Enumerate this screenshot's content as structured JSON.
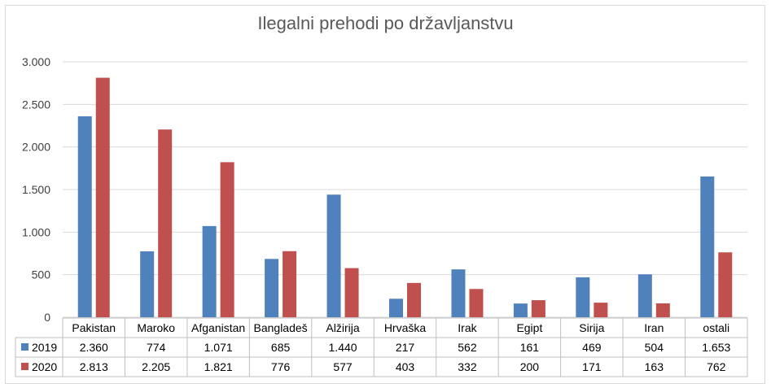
{
  "chart_data": {
    "type": "bar",
    "title": "Ilegalni prehodi po državljanstvu",
    "categories": [
      "Pakistan",
      "Maroko",
      "Afganistan",
      "Bangladeš",
      "Alžirija",
      "Hrvaška",
      "Irak",
      "Egipt",
      "Sirija",
      "Iran",
      "ostali"
    ],
    "series": [
      {
        "name": "2019",
        "color": "#4f81bd",
        "values": [
          2360,
          774,
          1071,
          685,
          1440,
          217,
          562,
          161,
          469,
          504,
          1653
        ],
        "labels": [
          "2.360",
          "774",
          "1.071",
          "685",
          "1.440",
          "217",
          "562",
          "161",
          "469",
          "504",
          "1.653"
        ]
      },
      {
        "name": "2020",
        "color": "#c0504d",
        "values": [
          2813,
          2205,
          1821,
          776,
          577,
          403,
          332,
          200,
          171,
          163,
          762
        ],
        "labels": [
          "2.813",
          "2.205",
          "1.821",
          "776",
          "577",
          "403",
          "332",
          "200",
          "171",
          "163",
          "762"
        ]
      }
    ],
    "ylim": [
      0,
      3000
    ],
    "yticks": [
      0,
      500,
      1000,
      1500,
      2000,
      2500,
      3000
    ],
    "ytick_labels": [
      "0",
      "500",
      "1.000",
      "1.500",
      "2.000",
      "2.500",
      "3.000"
    ],
    "grid": true,
    "legend": "data-table"
  }
}
